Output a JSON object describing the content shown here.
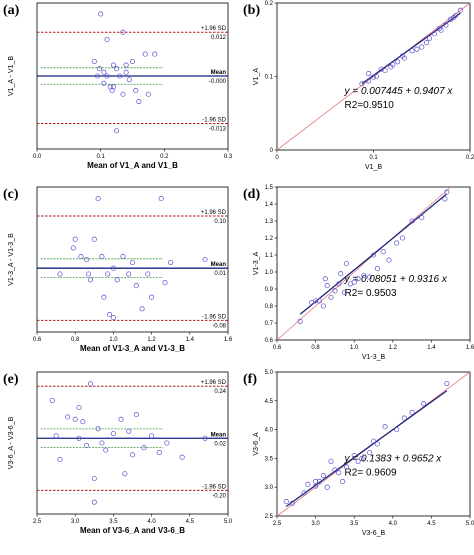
{
  "chart_data": [
    {
      "panel": "(a)",
      "type": "scatter",
      "xlabel": "Mean of V1_A and V1_B",
      "ylabel": "V1_A - V1_B",
      "xlim": [
        0,
        0.3
      ],
      "ylim": [
        -0.02,
        0.02
      ],
      "xticks": [
        "0.0",
        "0.1",
        "0.2",
        "0.3"
      ],
      "lines": {
        "upper": 0.012,
        "mean": -0.0,
        "lower": -0.013
      },
      "labels": {
        "upper": "+1.96 SD",
        "upper_val": "0.012",
        "mean": "Mean",
        "mean_val": "-0.000",
        "lower": "-1.96 SD",
        "lower_val": "-0.013"
      },
      "points": [
        [
          0.1,
          0.017
        ],
        [
          0.095,
          0.0
        ],
        [
          0.11,
          0.01
        ],
        [
          0.135,
          0.012
        ],
        [
          0.17,
          0.006
        ],
        [
          0.185,
          0.006
        ],
        [
          0.15,
          0.004
        ],
        [
          0.12,
          0.003
        ],
        [
          0.125,
          0.002
        ],
        [
          0.13,
          0.0
        ],
        [
          0.14,
          0.001
        ],
        [
          0.145,
          -0.001
        ],
        [
          0.105,
          -0.002
        ],
        [
          0.115,
          -0.003
        ],
        [
          0.118,
          -0.004
        ],
        [
          0.135,
          -0.005
        ],
        [
          0.155,
          -0.004
        ],
        [
          0.16,
          -0.007
        ],
        [
          0.125,
          -0.015
        ],
        [
          0.09,
          0.004
        ],
        [
          0.105,
          0.001
        ],
        [
          0.11,
          0.0
        ],
        [
          0.098,
          0.002
        ],
        [
          0.14,
          0.003
        ],
        [
          0.175,
          -0.005
        ],
        [
          0.12,
          -0.003
        ]
      ]
    },
    {
      "panel": "(b)",
      "type": "scatter",
      "xlabel": "V1_B",
      "ylabel": "V1_A",
      "xlim": [
        0,
        0.2
      ],
      "ylim": [
        0,
        0.2
      ],
      "xticks": [
        "0",
        "0.1",
        "0.2"
      ],
      "yticks": [
        "0",
        "0.1",
        "0.2"
      ],
      "equation": "y = 0.007445 + 0.9407 x",
      "r2": "R2=0.9510",
      "fit": {
        "intercept": 0.007445,
        "slope": 0.9407
      },
      "points": [
        [
          0.088,
          0.09
        ],
        [
          0.095,
          0.094
        ],
        [
          0.1,
          0.099
        ],
        [
          0.103,
          0.1
        ],
        [
          0.108,
          0.11
        ],
        [
          0.112,
          0.108
        ],
        [
          0.118,
          0.113
        ],
        [
          0.12,
          0.116
        ],
        [
          0.125,
          0.12
        ],
        [
          0.13,
          0.128
        ],
        [
          0.132,
          0.125
        ],
        [
          0.14,
          0.135
        ],
        [
          0.145,
          0.137
        ],
        [
          0.15,
          0.14
        ],
        [
          0.155,
          0.146
        ],
        [
          0.158,
          0.152
        ],
        [
          0.163,
          0.158
        ],
        [
          0.168,
          0.165
        ],
        [
          0.17,
          0.163
        ],
        [
          0.175,
          0.17
        ],
        [
          0.18,
          0.178
        ],
        [
          0.183,
          0.18
        ],
        [
          0.19,
          0.19
        ],
        [
          0.185,
          0.183
        ],
        [
          0.095,
          0.104
        ]
      ]
    },
    {
      "panel": "(c)",
      "type": "scatter",
      "xlabel": "Mean of V1-3_A and V1-3_B",
      "ylabel": "V1-3_A - V1-3_B",
      "xlim": [
        0.6,
        1.6
      ],
      "ylim": [
        -0.1,
        0.15
      ],
      "xticks": [
        "0.6",
        "0.8",
        "1.0",
        "1.2",
        "1.4",
        "1.6"
      ],
      "lines": {
        "upper": 0.1,
        "mean": 0.01,
        "lower": -0.08
      },
      "labels": {
        "upper": "+1.96 SD",
        "upper_val": "0.10",
        "mean": "Mean",
        "mean_val": "0.01",
        "lower": "-1.96 SD",
        "lower_val": "-0.08"
      },
      "points": [
        [
          0.72,
          0.0
        ],
        [
          0.8,
          0.06
        ],
        [
          0.79,
          0.045
        ],
        [
          0.83,
          0.03
        ],
        [
          0.86,
          0.025
        ],
        [
          0.87,
          0.0
        ],
        [
          0.88,
          -0.01
        ],
        [
          0.9,
          0.06
        ],
        [
          0.92,
          0.13
        ],
        [
          0.95,
          -0.04
        ],
        [
          0.97,
          0.0
        ],
        [
          0.98,
          -0.07
        ],
        [
          1.0,
          0.01
        ],
        [
          1.02,
          -0.01
        ],
        [
          1.05,
          0.03
        ],
        [
          1.08,
          0.0
        ],
        [
          1.1,
          0.02
        ],
        [
          1.12,
          -0.02
        ],
        [
          1.15,
          -0.06
        ],
        [
          1.18,
          0.0
        ],
        [
          1.2,
          -0.04
        ],
        [
          1.25,
          0.13
        ],
        [
          1.27,
          -0.015
        ],
        [
          1.3,
          0.02
        ],
        [
          1.48,
          0.025
        ],
        [
          1.0,
          -0.075
        ],
        [
          0.94,
          0.03
        ]
      ]
    },
    {
      "panel": "(d)",
      "type": "scatter",
      "xlabel": "V1-3_B",
      "ylabel": "V1-3_A",
      "xlim": [
        0.6,
        1.6
      ],
      "ylim": [
        0.6,
        1.5
      ],
      "xticks": [
        "0.6",
        "0.8",
        "1.0",
        "1.2",
        "1.4",
        "1.6"
      ],
      "yticks": [
        "0.6",
        "0.7",
        "0.8",
        "0.9",
        "1.0",
        "1.1",
        "1.2",
        "1.3",
        "1.4",
        "1.5"
      ],
      "equation": "y = 0.08051 + 0.9316 x",
      "r2": "R2= 0.9503",
      "fit": {
        "intercept": 0.08051,
        "slope": 0.9316
      },
      "points": [
        [
          0.72,
          0.71
        ],
        [
          0.78,
          0.82
        ],
        [
          0.8,
          0.83
        ],
        [
          0.82,
          0.83
        ],
        [
          0.84,
          0.8
        ],
        [
          0.85,
          0.96
        ],
        [
          0.88,
          0.85
        ],
        [
          0.9,
          0.89
        ],
        [
          0.92,
          0.93
        ],
        [
          0.93,
          0.99
        ],
        [
          0.95,
          0.88
        ],
        [
          0.98,
          0.93
        ],
        [
          1.0,
          0.94
        ],
        [
          1.02,
          0.96
        ],
        [
          1.05,
          0.98
        ],
        [
          1.08,
          0.97
        ],
        [
          1.1,
          1.1
        ],
        [
          1.12,
          1.02
        ],
        [
          1.15,
          1.12
        ],
        [
          1.18,
          1.07
        ],
        [
          1.22,
          1.17
        ],
        [
          1.25,
          1.2
        ],
        [
          1.3,
          1.3
        ],
        [
          1.35,
          1.32
        ],
        [
          1.48,
          1.47
        ],
        [
          1.47,
          1.43
        ],
        [
          0.86,
          0.92
        ],
        [
          0.96,
          1.05
        ]
      ]
    },
    {
      "panel": "(e)",
      "type": "scatter",
      "xlabel": "Mean of V3-6_A and V3-6_B",
      "ylabel": "V3-6_A - V3-6_B",
      "xlim": [
        2.5,
        5.0
      ],
      "ylim": [
        -0.3,
        0.3
      ],
      "xticks": [
        "2.5",
        "3.0",
        "3.5",
        "4.0",
        "4.5",
        "5.0"
      ],
      "lines": {
        "upper": 0.24,
        "mean": 0.02,
        "lower": -0.2
      },
      "labels": {
        "upper": "+1.96 SD",
        "upper_val": "0.24",
        "mean": "Mean",
        "mean_val": "0.02",
        "lower": "-1.96 SD",
        "lower_val": "-0.20"
      },
      "points": [
        [
          2.7,
          0.18
        ],
        [
          2.75,
          0.03
        ],
        [
          2.8,
          -0.07
        ],
        [
          2.9,
          0.11
        ],
        [
          3.0,
          0.1
        ],
        [
          3.05,
          0.15
        ],
        [
          3.1,
          0.09
        ],
        [
          3.15,
          -0.01
        ],
        [
          3.2,
          0.25
        ],
        [
          3.25,
          -0.25
        ],
        [
          3.3,
          0.06
        ],
        [
          3.35,
          0.0
        ],
        [
          3.4,
          -0.03
        ],
        [
          3.5,
          0.04
        ],
        [
          3.6,
          0.1
        ],
        [
          3.65,
          -0.13
        ],
        [
          3.7,
          0.05
        ],
        [
          3.75,
          -0.05
        ],
        [
          3.8,
          0.12
        ],
        [
          3.9,
          -0.02
        ],
        [
          4.0,
          0.03
        ],
        [
          4.1,
          -0.04
        ],
        [
          4.2,
          0.0
        ],
        [
          4.4,
          -0.06
        ],
        [
          4.7,
          0.02
        ],
        [
          3.05,
          0.02
        ],
        [
          3.25,
          -0.15
        ]
      ]
    },
    {
      "panel": "(f)",
      "type": "scatter",
      "xlabel": "V3-6_B",
      "ylabel": "V3-6_A",
      "xlim": [
        2.5,
        5.0
      ],
      "ylim": [
        2.5,
        5.0
      ],
      "xticks": [
        "2.5",
        "3.0",
        "3.5",
        "4.0",
        "4.5",
        "5.0"
      ],
      "yticks": [
        "2.5",
        "3.0",
        "3.5",
        "4.0",
        "4.5",
        "5.0"
      ],
      "equation": "y = 0.1383 + 0.9652 x",
      "r2": "R2= 0.9609",
      "fit": {
        "intercept": 0.1383,
        "slope": 0.9652
      },
      "points": [
        [
          2.62,
          2.75
        ],
        [
          2.7,
          2.72
        ],
        [
          2.85,
          2.9
        ],
        [
          2.9,
          3.05
        ],
        [
          3.0,
          3.02
        ],
        [
          3.05,
          3.1
        ],
        [
          3.1,
          3.2
        ],
        [
          3.15,
          3.0
        ],
        [
          3.2,
          3.45
        ],
        [
          3.3,
          3.25
        ],
        [
          3.35,
          3.1
        ],
        [
          3.4,
          3.35
        ],
        [
          3.5,
          3.55
        ],
        [
          3.55,
          3.45
        ],
        [
          3.6,
          3.5
        ],
        [
          3.7,
          3.6
        ],
        [
          3.75,
          3.8
        ],
        [
          3.8,
          3.75
        ],
        [
          3.9,
          4.05
        ],
        [
          4.05,
          4.0
        ],
        [
          4.15,
          4.2
        ],
        [
          4.25,
          4.3
        ],
        [
          4.4,
          4.45
        ],
        [
          4.7,
          4.8
        ],
        [
          3.0,
          3.1
        ],
        [
          3.25,
          3.3
        ]
      ]
    }
  ]
}
